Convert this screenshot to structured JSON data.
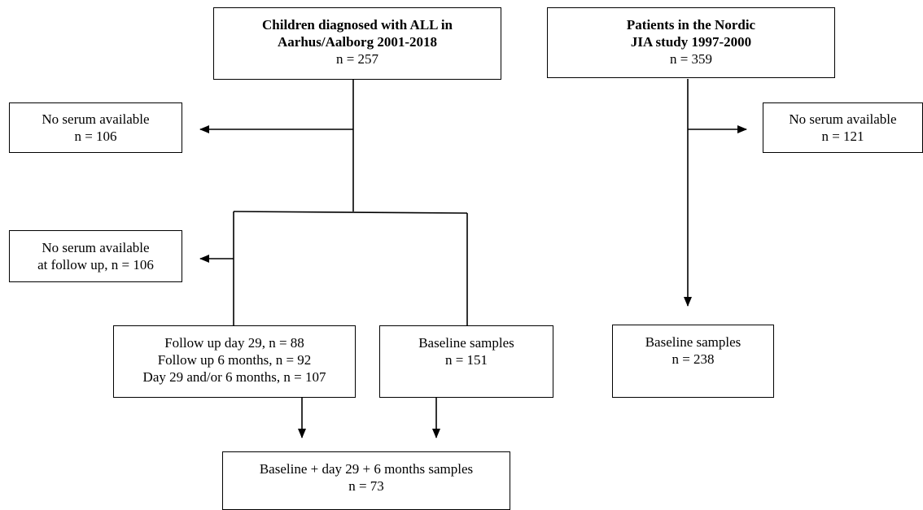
{
  "all_cohort": {
    "line1": "Children diagnosed with ALL in",
    "line2": "Aarhus/Aalborg 2001-2018",
    "line3": "n = 257"
  },
  "jia_cohort": {
    "line1": "Patients in the Nordic",
    "line2": "JIA study 1997-2000",
    "line3": "n = 359"
  },
  "all_excluded": {
    "line1": "No serum available",
    "line2": "n = 106"
  },
  "jia_excluded": {
    "line1": "No serum available",
    "line2": "n = 121"
  },
  "followup_excluded": {
    "line1": "No serum available",
    "line2": "at follow up, n = 106"
  },
  "followup_samples": {
    "line1": "Follow up day 29, n = 88",
    "line2": "Follow up 6 months, n = 92",
    "line3": "Day 29 and/or 6 months, n = 107"
  },
  "all_baseline": {
    "line1": "Baseline samples",
    "line2": "n = 151"
  },
  "jia_baseline": {
    "line1": "Baseline samples",
    "line2": "n = 238"
  },
  "combined_samples": {
    "line1": "Baseline + day 29 + 6 months samples",
    "line2": "n = 73"
  }
}
